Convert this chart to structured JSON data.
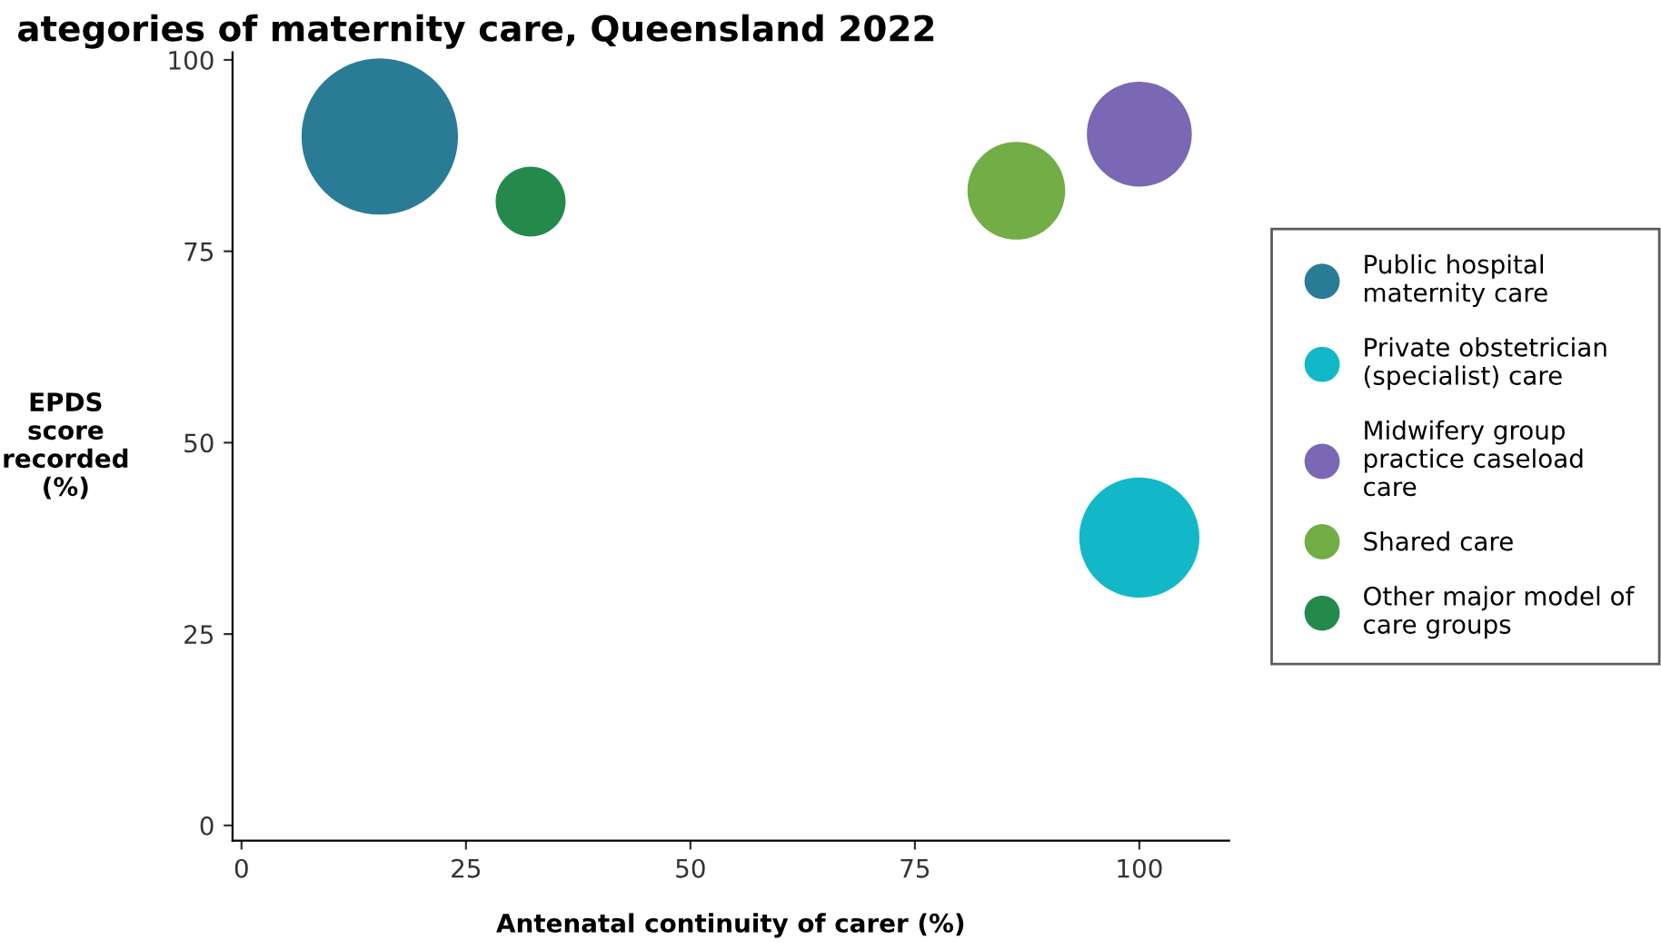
{
  "chart_data": {
    "type": "bubble",
    "title": "ategories of maternity care, Queensland 2022",
    "xlabel": "Antenatal continuity of carer (%)",
    "ylabel": "EPDS\nscore\nrecorded\n(%)",
    "xlim": [
      -1,
      110
    ],
    "ylim": [
      -2,
      101
    ],
    "xticks": [
      0,
      25,
      50,
      75,
      100
    ],
    "yticks": [
      0,
      25,
      50,
      75,
      100
    ],
    "grid": false,
    "legend": "right",
    "relative": false,
    "series": [
      {
        "name": "Public hospital maternity care",
        "color": "#2a7b96",
        "x": [
          15.4
        ],
        "values": [
          90
        ],
        "sizes": [
          1
        ]
      },
      {
        "name": "Private obstetrician (specialist) care",
        "color": "#13b8c8",
        "x": [
          100
        ],
        "values": [
          37.6
        ],
        "sizes": [
          0.59
        ]
      },
      {
        "name": "Midwifery group practice caseload care",
        "color": "#7b68b5",
        "x": [
          100
        ],
        "values": [
          90.3
        ],
        "sizes": [
          0.45
        ]
      },
      {
        "name": "Shared care",
        "color": "#72ad45",
        "x": [
          86.3
        ],
        "values": [
          82.9
        ],
        "sizes": [
          0.39
        ]
      },
      {
        "name": "Other major model of care groups",
        "color": "#238a4c",
        "x": [
          32.2
        ],
        "values": [
          81.5
        ],
        "sizes": [
          0.2
        ]
      }
    ]
  }
}
